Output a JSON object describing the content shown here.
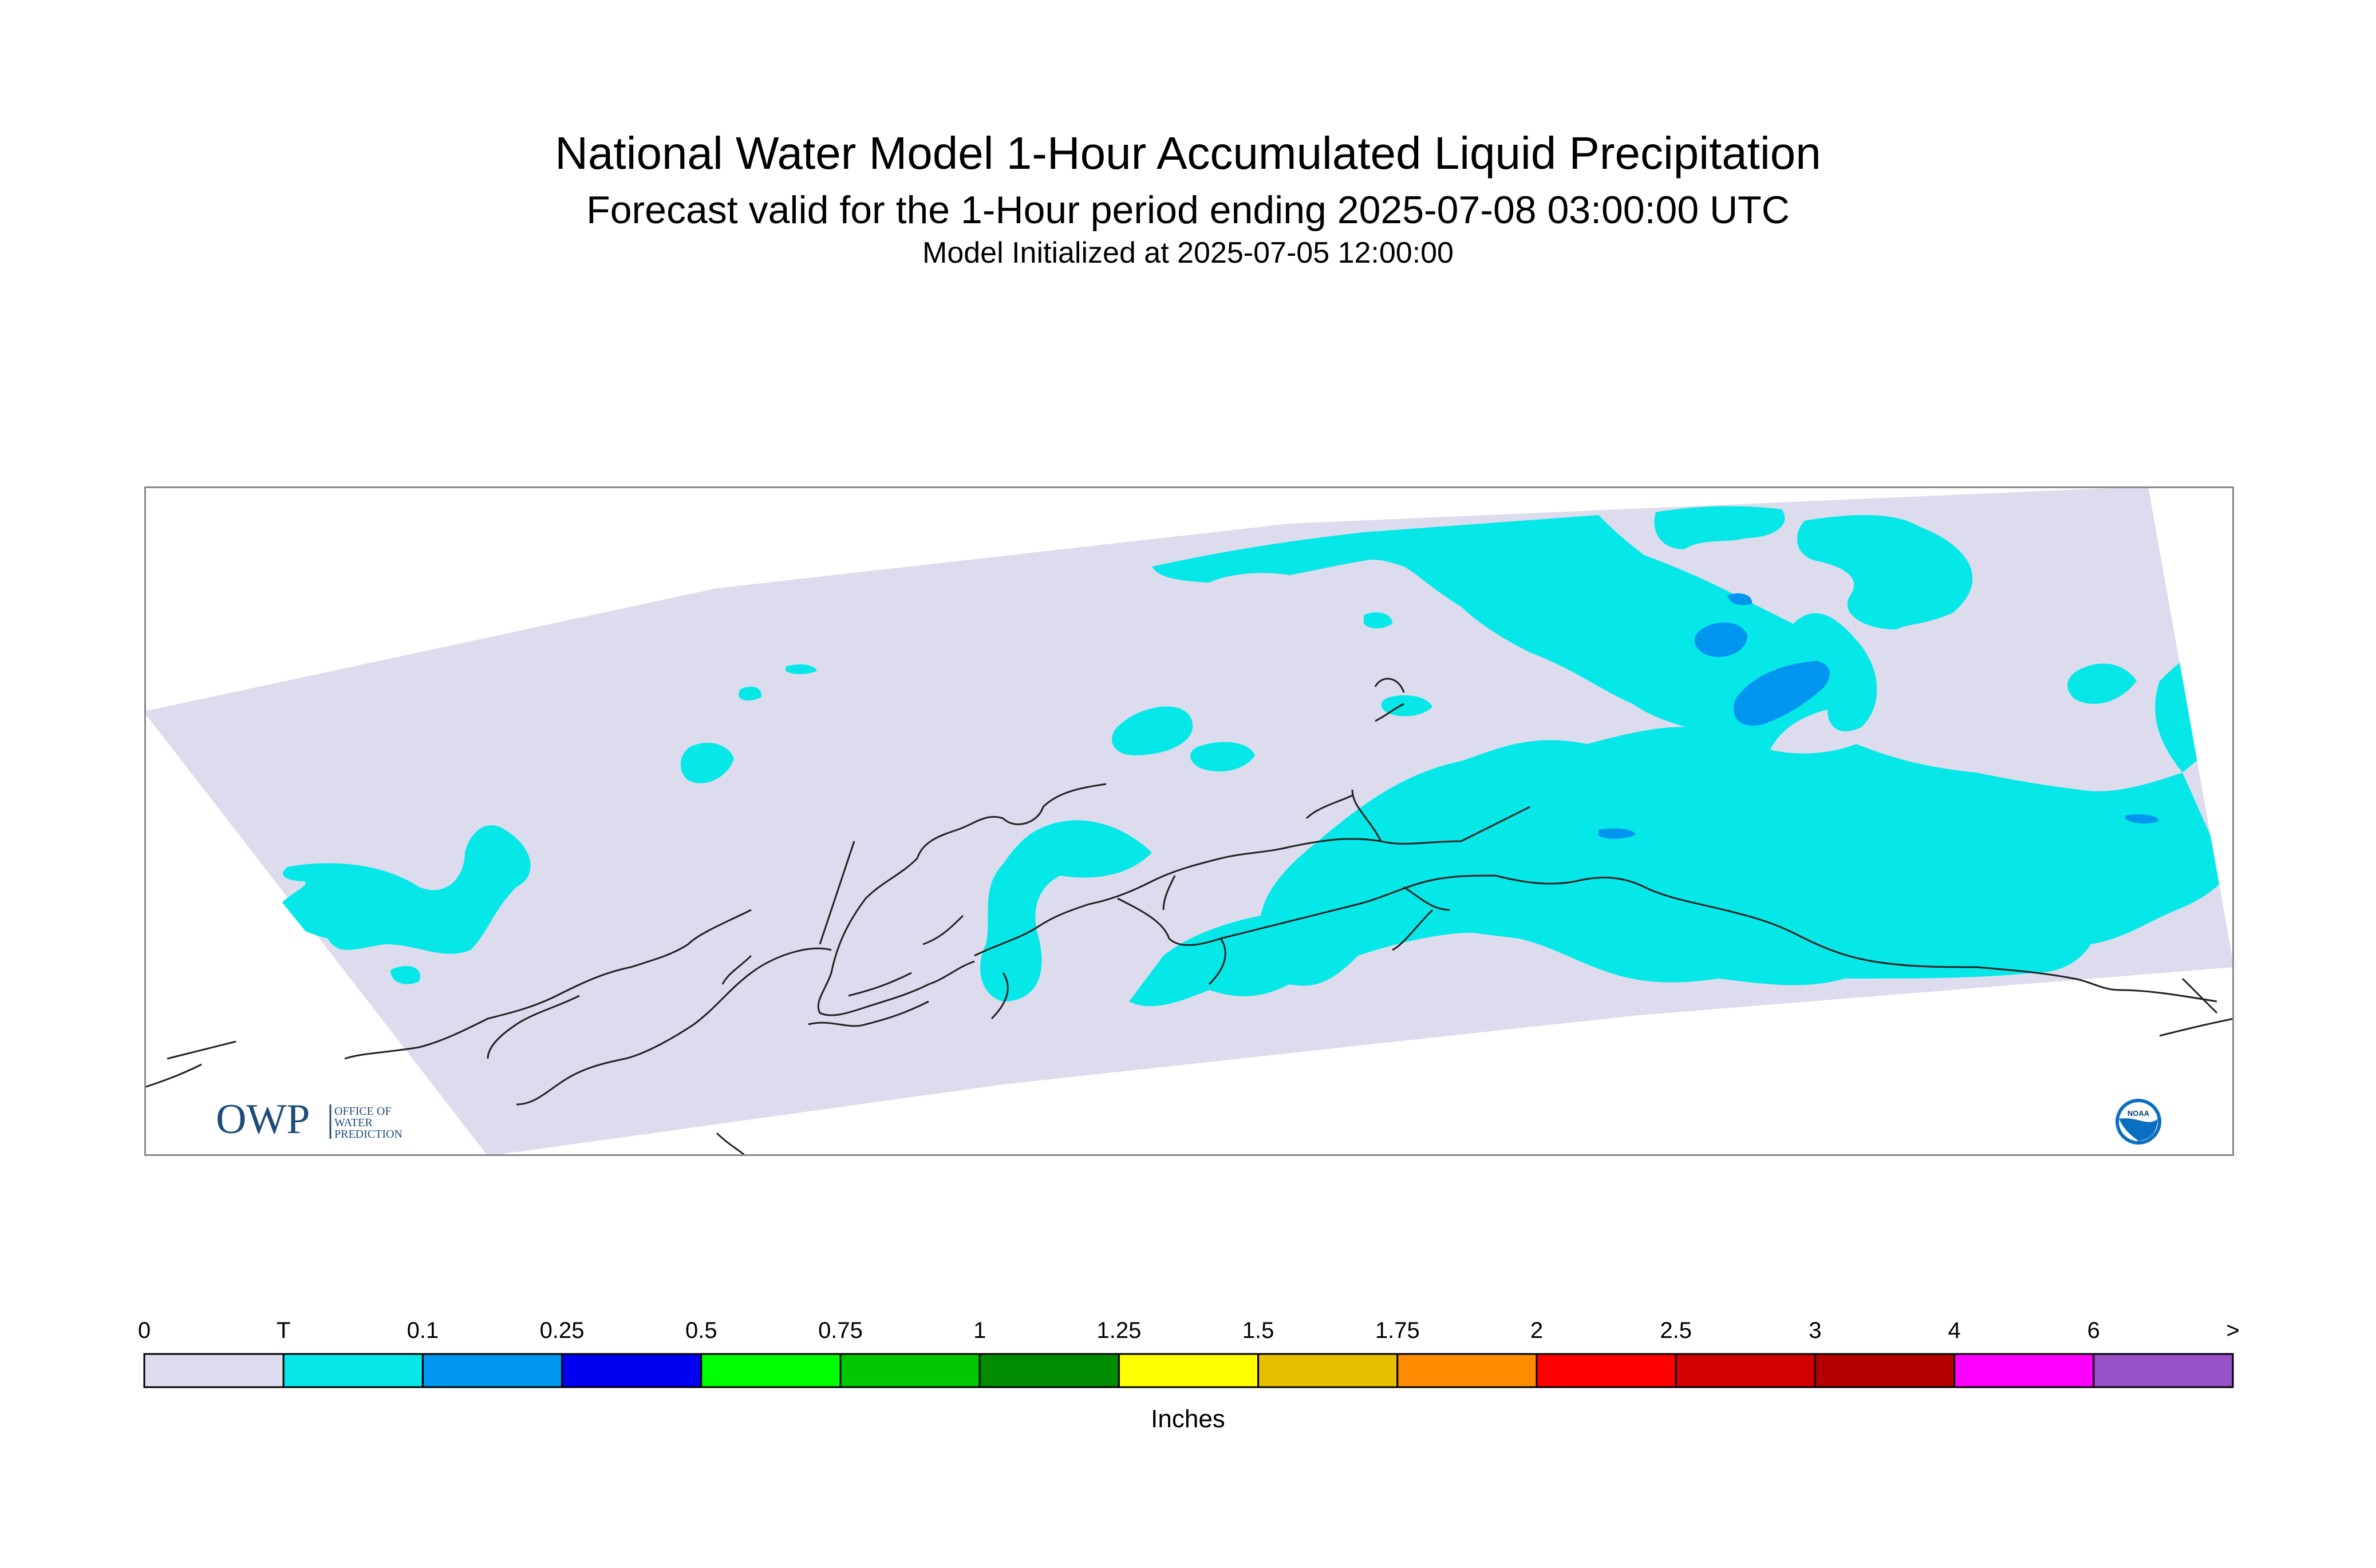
{
  "header": {
    "title": "National Water Model 1-Hour Accumulated Liquid Precipitation",
    "subtitle": "Forecast valid for the 1-Hour period ending 2025-07-08 03:00:00 UTC",
    "init": "Model Initialized at 2025-07-05 12:00:00"
  },
  "logos": {
    "owp_main": "OWP",
    "owp_line1": "OFFICE OF",
    "owp_line2": "WATER",
    "owp_line3": "PREDICTION",
    "noaa": "NOAA"
  },
  "colors": {
    "no_data_bg": "#ffffff",
    "zero": "#dcdcee",
    "trace": "#06e8e8",
    "light": "#0096f0",
    "coast": "#222222"
  },
  "legend": {
    "ticks": [
      "0",
      "T",
      "0.1",
      "0.25",
      "0.5",
      "0.75",
      "1",
      "1.25",
      "1.5",
      "1.75",
      "2",
      "2.5",
      "3",
      "4",
      "6",
      ">"
    ],
    "colors": [
      "#dcdcee",
      "#06e8e8",
      "#0096f0",
      "#0000f0",
      "#00ff00",
      "#00c800",
      "#008c00",
      "#ffff00",
      "#e6c000",
      "#ff8c00",
      "#ff0000",
      "#d20000",
      "#b40000",
      "#ff00ff",
      "#9650c8"
    ],
    "units": "Inches"
  }
}
